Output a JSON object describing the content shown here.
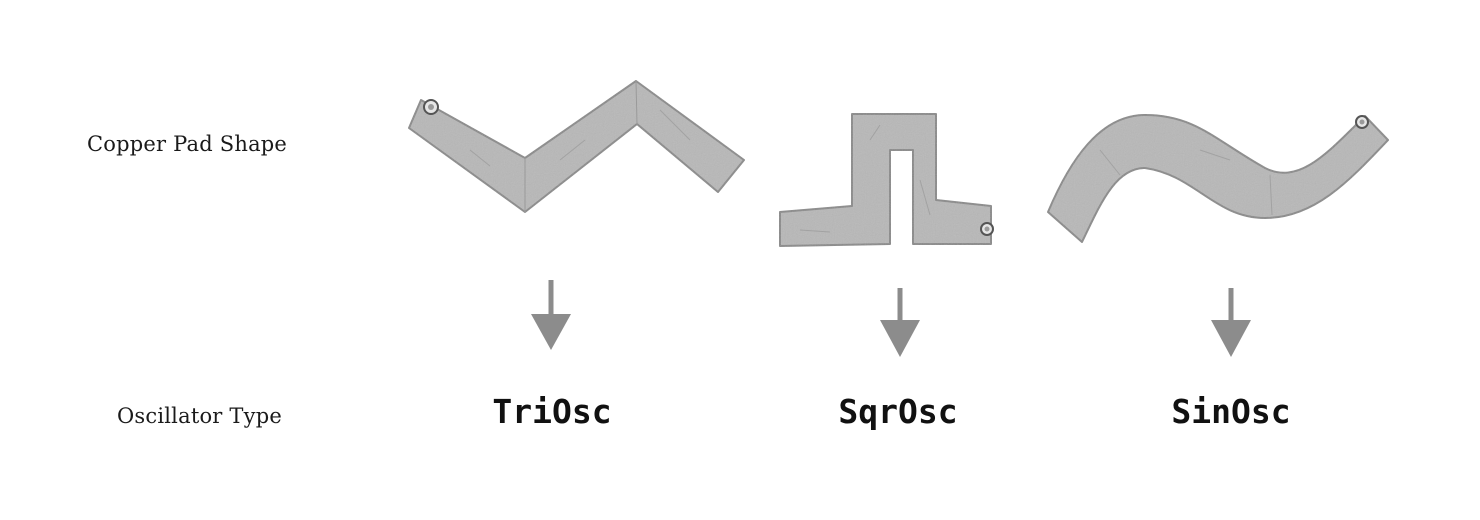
{
  "labels": {
    "pad_shape": "Copper Pad Shape",
    "oscillator_type": "Oscillator Type"
  },
  "columns": [
    {
      "shape": "triangle-wave",
      "oscillator": "TriOsc"
    },
    {
      "shape": "square-wave",
      "oscillator": "SqrOsc"
    },
    {
      "shape": "sine-wave",
      "oscillator": "SinOsc"
    }
  ],
  "colors": {
    "pad_fill": "#b8b8b8",
    "pad_edge": "#8a8a8a",
    "arrow": "#8c8c8c",
    "text": "#111111"
  }
}
